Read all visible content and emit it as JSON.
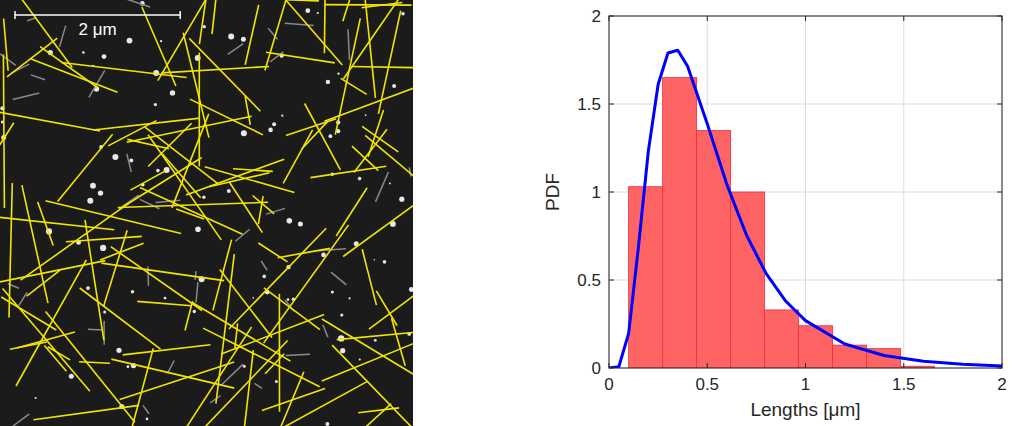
{
  "image": {
    "scale_bar": {
      "label": "2 μm",
      "length": 2
    },
    "field_of_view": 5
  },
  "chart_data": {
    "type": "histogram",
    "xlabel": "Lengths [μm]",
    "ylabel": "PDF",
    "bins": [
      0.1,
      0.273,
      0.446,
      0.619,
      0.792,
      0.965,
      1.138,
      1.311,
      1.484,
      1.657
    ],
    "counts": [
      1.03,
      1.65,
      1.35,
      1.0,
      0.33,
      0.24,
      0.13,
      0.11,
      0.01
    ],
    "color": "#ff6464",
    "xlim": [
      0,
      2
    ],
    "ylim": [
      0,
      2
    ],
    "xticks": [
      0,
      0.5,
      1,
      1.5,
      2
    ],
    "yticks": [
      0,
      0.5,
      1,
      1.5,
      2
    ],
    "grid": true,
    "series": [
      {
        "type": "line",
        "color": "#0000ff",
        "x": [
          0,
          0.05,
          0.1,
          0.15,
          0.2,
          0.25,
          0.3,
          0.35,
          0.4,
          0.5,
          0.6,
          0.7,
          0.8,
          0.9,
          1.0,
          1.2,
          1.4,
          1.6,
          1.8,
          2.0
        ],
        "values": [
          0,
          0.007,
          0.197,
          0.69,
          1.23,
          1.611,
          1.79,
          1.805,
          1.714,
          1.388,
          1.042,
          0.754,
          0.536,
          0.379,
          0.269,
          0.136,
          0.071,
          0.038,
          0.021,
          0.012
        ]
      }
    ]
  }
}
